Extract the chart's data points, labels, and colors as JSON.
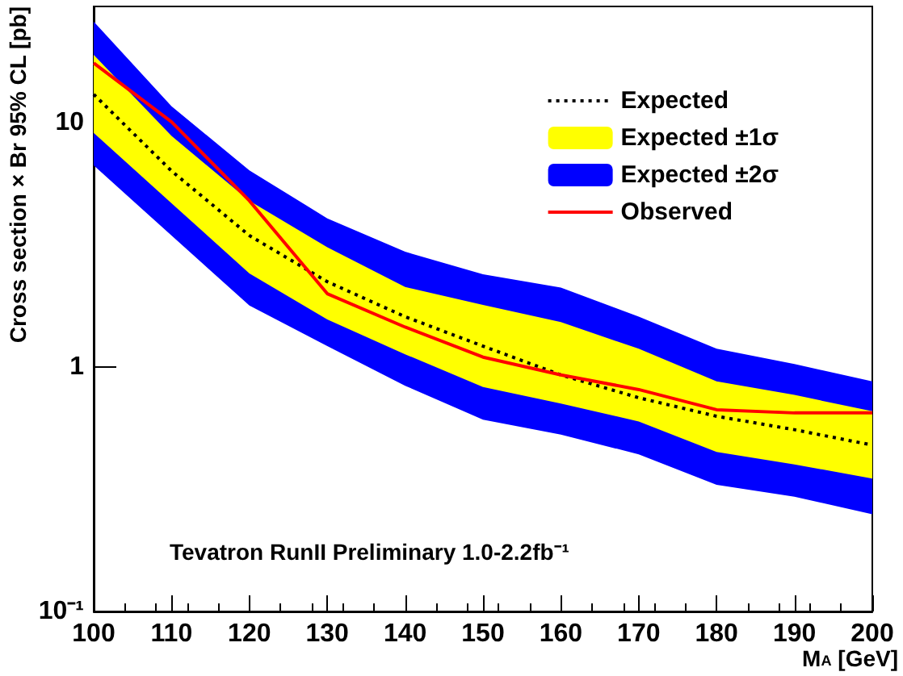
{
  "chart_data": {
    "type": "line",
    "xlabel": "M$_{A}$ [GeV]",
    "ylabel": "Cross section × Br 95% CL [pb]",
    "x": [
      100,
      110,
      120,
      130,
      140,
      150,
      160,
      170,
      180,
      190,
      200
    ],
    "series": [
      {
        "name": "Expected ±2σ",
        "type": "area",
        "color": "#0000ff",
        "values": [
          null,
          null,
          null,
          null,
          null,
          null,
          null,
          null,
          null,
          null,
          null
        ],
        "lower": [
          6.7,
          3.46,
          1.79,
          1.22,
          0.84,
          0.61,
          0.53,
          0.44,
          0.33,
          0.295,
          0.25
        ],
        "upper": [
          26,
          11.7,
          6.4,
          4.07,
          2.97,
          2.4,
          2.12,
          1.61,
          1.19,
          1.03,
          0.875
        ]
      },
      {
        "name": "Expected ±1σ",
        "type": "area",
        "color": "#ffff00",
        "values": [
          null,
          null,
          null,
          null,
          null,
          null,
          null,
          null,
          null,
          null,
          null
        ],
        "lower": [
          9.1,
          4.69,
          2.42,
          1.57,
          1.13,
          0.83,
          0.71,
          0.6,
          0.45,
          0.4,
          0.35
        ],
        "upper": [
          19,
          8.85,
          4.8,
          3.1,
          2.13,
          1.8,
          1.53,
          1.19,
          0.875,
          0.77,
          0.66
        ]
      },
      {
        "name": "Expected",
        "color": "#000000",
        "line_style": "dotted",
        "values": [
          13.1,
          6.36,
          3.46,
          2.24,
          1.61,
          1.22,
          0.93,
          0.75,
          0.63,
          0.555,
          0.48
        ]
      },
      {
        "name": "Observed",
        "color": "#ff0000",
        "line_style": "solid",
        "values": [
          17.6,
          10.1,
          4.8,
          2.0,
          1.46,
          1.1,
          0.93,
          0.81,
          0.67,
          0.65,
          0.65
        ]
      }
    ],
    "xlim": [
      100,
      200
    ],
    "xticks": [
      100,
      110,
      120,
      130,
      140,
      150,
      160,
      170,
      180,
      190,
      200
    ],
    "ylim": [
      0.1,
      30
    ],
    "yticks": [
      {
        "value": 0.1,
        "label": "10⁻¹"
      },
      1,
      10
    ],
    "log": "y",
    "grid": false,
    "legend": "top right",
    "marker": "none",
    "annotations": [
      "Tevatron RunII Preliminary 1.0-2.2fb⁻¹"
    ]
  }
}
